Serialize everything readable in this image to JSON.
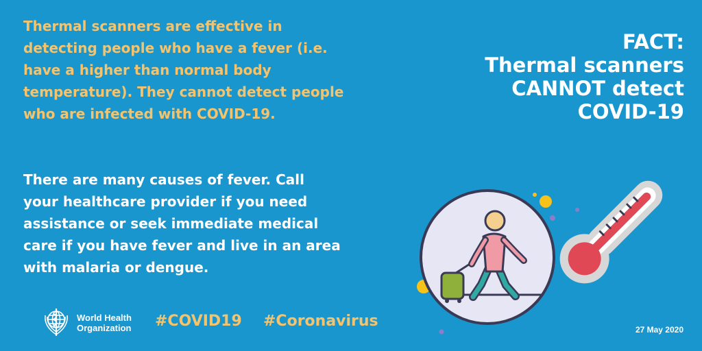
{
  "main": {
    "paragraph_1": "Thermal scanners are effective in\ndetecting people who have a fever (i.e.\nhave a higher than normal body\ntemperature). They cannot detect people\nwho are infected with COVID-19.",
    "paragraph_2": "There are many causes of fever. Call\nyour healthcare provider if you need\nassistance or seek immediate medical\ncare if you have fever and live in an area\nwith malaria or dengue."
  },
  "fact": {
    "line_1": "FACT:",
    "line_2": "Thermal scanners",
    "line_3": "CANNOT detect",
    "line_4": "COVID-19"
  },
  "footer": {
    "org_line_1": "World Health",
    "org_line_2": "Organization",
    "hashtag_1": "#COVID19",
    "hashtag_2": "#Coronavirus",
    "date": "27 May 2020"
  },
  "icons": {
    "logo": "who-emblem-icon",
    "illustration": "traveler-with-suitcase-icon",
    "thermometer": "thermometer-icon"
  },
  "colors": {
    "background": "#1a96cf",
    "accent_yellow": "#f3c46d",
    "text_white": "#ffffff"
  }
}
